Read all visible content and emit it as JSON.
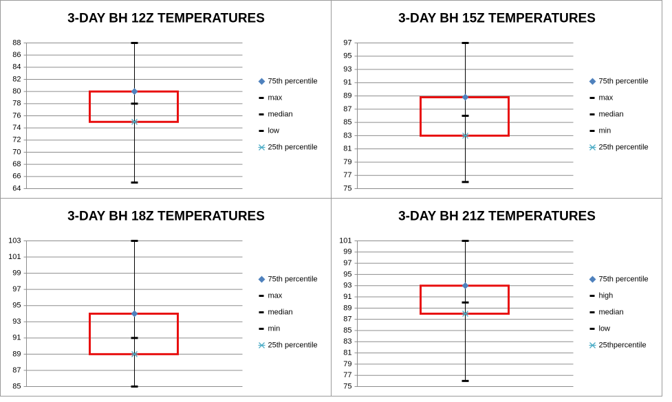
{
  "chart_data": [
    {
      "type": "box",
      "title": "3-DAY BH 12Z TEMPERATURES",
      "ylim": [
        64,
        88
      ],
      "yticks": [
        64,
        66,
        68,
        70,
        72,
        74,
        76,
        78,
        80,
        82,
        84,
        86,
        88
      ],
      "grid": true,
      "box_color": "#e81010",
      "series": [
        {
          "name": "75th percentile",
          "color": "#4f81bd",
          "marker": "diamond",
          "values": [
            80
          ]
        },
        {
          "name": "max",
          "color": "#000000",
          "marker": "dash",
          "values": [
            88
          ]
        },
        {
          "name": "median",
          "color": "#000000",
          "marker": "dash",
          "values": [
            78
          ]
        },
        {
          "name": "low",
          "color": "#000000",
          "marker": "dash",
          "values": [
            65
          ]
        },
        {
          "name": "25th percentile",
          "color": "#4bacc6",
          "marker": "asterisk",
          "values": [
            75
          ]
        }
      ]
    },
    {
      "type": "box",
      "title": "3-DAY BH 15Z TEMPERATURES",
      "ylim": [
        75,
        97
      ],
      "yticks": [
        75,
        77,
        79,
        81,
        83,
        85,
        87,
        89,
        91,
        93,
        95,
        97
      ],
      "grid": true,
      "box_color": "#e81010",
      "series": [
        {
          "name": "75th percentile",
          "color": "#4f81bd",
          "marker": "diamond",
          "values": [
            88.8
          ]
        },
        {
          "name": "max",
          "color": "#000000",
          "marker": "dash",
          "values": [
            97
          ]
        },
        {
          "name": "median",
          "color": "#000000",
          "marker": "dash",
          "values": [
            86
          ]
        },
        {
          "name": "min",
          "color": "#000000",
          "marker": "dash",
          "values": [
            76
          ]
        },
        {
          "name": "25th percentile",
          "color": "#4bacc6",
          "marker": "asterisk",
          "values": [
            83
          ]
        }
      ]
    },
    {
      "type": "box",
      "title": "3-DAY BH 18Z TEMPERATURES",
      "ylim": [
        85,
        103
      ],
      "yticks": [
        85,
        87,
        89,
        91,
        93,
        95,
        97,
        99,
        101,
        103
      ],
      "grid": true,
      "box_color": "#e81010",
      "series": [
        {
          "name": "75th percentile",
          "color": "#4f81bd",
          "marker": "diamond",
          "values": [
            94
          ]
        },
        {
          "name": "max",
          "color": "#000000",
          "marker": "dash",
          "values": [
            103
          ]
        },
        {
          "name": "median",
          "color": "#000000",
          "marker": "dash",
          "values": [
            91
          ]
        },
        {
          "name": "min",
          "color": "#000000",
          "marker": "dash",
          "values": [
            85
          ]
        },
        {
          "name": "25th percentile",
          "color": "#4bacc6",
          "marker": "asterisk",
          "values": [
            89
          ]
        }
      ]
    },
    {
      "type": "box",
      "title": "3-DAY BH 21Z TEMPERATURES",
      "ylim": [
        75,
        101
      ],
      "yticks": [
        75,
        77,
        79,
        81,
        83,
        85,
        87,
        89,
        91,
        93,
        95,
        97,
        99,
        101
      ],
      "grid": true,
      "box_color": "#e81010",
      "series": [
        {
          "name": "75th percentile",
          "color": "#4f81bd",
          "marker": "diamond",
          "values": [
            93
          ]
        },
        {
          "name": "high",
          "color": "#000000",
          "marker": "dash",
          "values": [
            101
          ]
        },
        {
          "name": "median",
          "color": "#000000",
          "marker": "dash",
          "values": [
            90
          ]
        },
        {
          "name": "low",
          "color": "#000000",
          "marker": "dash",
          "values": [
            76
          ]
        },
        {
          "name": "25thpercentile",
          "color": "#4bacc6",
          "marker": "asterisk",
          "values": [
            88
          ]
        }
      ]
    }
  ]
}
